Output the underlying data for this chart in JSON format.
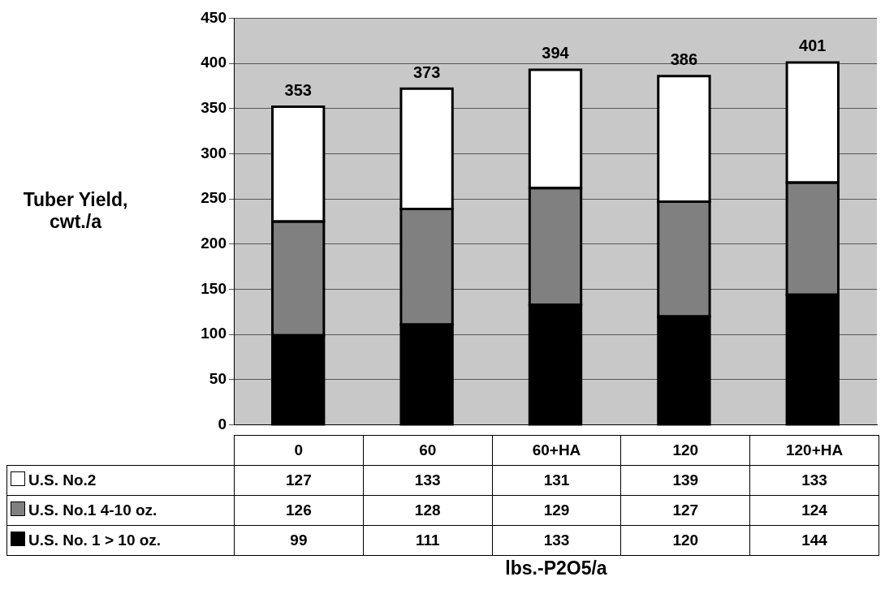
{
  "chart_data": {
    "type": "bar",
    "stacked": true,
    "annotations": [
      "lbs.-P2O5/a"
    ],
    "ylabel": "Tuber Yield, cwt./a",
    "categories": [
      "0",
      "60",
      "60+HA",
      "120",
      "120+HA"
    ],
    "series": [
      {
        "name": "U.S. No. 1 > 10 oz.",
        "color": "#000000",
        "values": [
          99,
          111,
          133,
          120,
          144
        ]
      },
      {
        "name": "U.S. No.1 4-10 oz.",
        "color": "#808080",
        "values": [
          126,
          128,
          129,
          127,
          124
        ]
      },
      {
        "name": "U.S. No.2",
        "color": "#ffffff",
        "values": [
          127,
          133,
          131,
          139,
          133
        ]
      }
    ],
    "totals": [
      "353",
      "373",
      "394",
      "386",
      "401"
    ],
    "ylim": [
      0,
      450
    ],
    "yticks": [
      0,
      50,
      100,
      150,
      200,
      250,
      300,
      350,
      400,
      450
    ],
    "grid": "y",
    "legend": "bottom",
    "data_labels": true
  }
}
